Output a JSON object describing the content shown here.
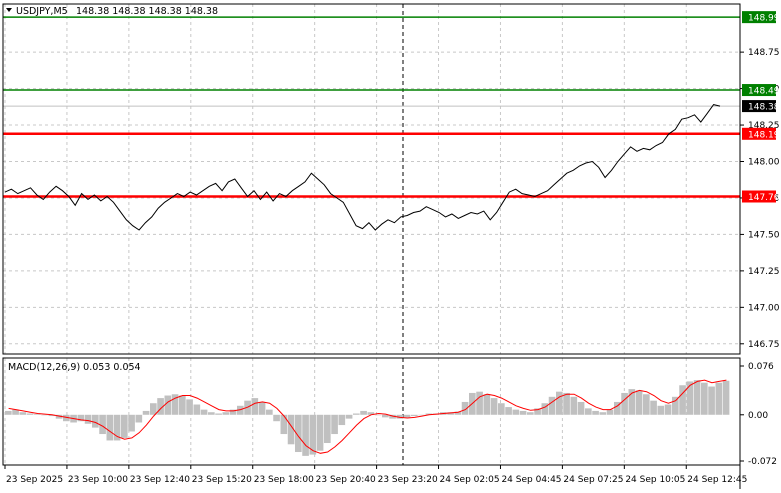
{
  "header": {
    "symbol": "USDJPY,M5",
    "ohlc": "148.38 148.38 148.38 148.38"
  },
  "macd_header": {
    "label": "MACD(12,26,9) 0.053 0.054"
  },
  "colors": {
    "background": "#ffffff",
    "grid": "#c8c8c8",
    "price_line": "#000000",
    "support_resistance": "#ff0000",
    "target": "#008000",
    "histogram": "#c0c0c0",
    "signal": "#ff0000"
  },
  "chart_data": [
    {
      "type": "line",
      "title": "USDJPY,M5",
      "ylim": [
        146.68,
        149.08
      ],
      "y_ticks": [
        "148.75",
        "148.50",
        "148.25",
        "148.00",
        "147.75",
        "147.50",
        "147.25",
        "147.00",
        "146.75"
      ],
      "grid": true,
      "x_labels": [
        "23 Sep 2025",
        "23 Sep 10:00",
        "23 Sep 12:40",
        "23 Sep 15:20",
        "23 Sep 18:00",
        "23 Sep 20:40",
        "23 Sep 23:20",
        "24 Sep 02:05",
        "24 Sep 04:45",
        "24 Sep 07:25",
        "24 Sep 10:05",
        "24 Sep 12:45"
      ],
      "current_price": "148.38",
      "levels": [
        {
          "value": 148.99,
          "label": "148.99",
          "kind": "target"
        },
        {
          "value": 148.49,
          "label": "148.49",
          "kind": "target"
        },
        {
          "value": 148.19,
          "label": "148.19",
          "kind": "level"
        },
        {
          "value": 147.76,
          "label": "147.76",
          "kind": "level"
        }
      ],
      "series": [
        {
          "values": [
            147.79,
            147.81,
            147.78,
            147.8,
            147.82,
            147.77,
            147.74,
            147.79,
            147.83,
            147.8,
            147.76,
            147.7,
            147.78,
            147.74,
            147.77,
            147.73,
            147.76,
            147.72,
            147.66,
            147.6,
            147.56,
            147.53,
            147.58,
            147.62,
            147.68,
            147.72,
            147.75,
            147.78,
            147.76,
            147.79,
            147.77,
            147.8,
            147.83,
            147.85,
            147.8,
            147.86,
            147.88,
            147.82,
            147.76,
            147.8,
            147.74,
            147.79,
            147.73,
            147.78,
            147.76,
            147.8,
            147.83,
            147.86,
            147.92,
            147.88,
            147.84,
            147.78,
            147.75,
            147.72,
            147.64,
            147.56,
            147.54,
            147.58,
            147.53,
            147.57,
            147.6,
            147.58,
            147.62,
            147.63,
            147.65,
            147.66,
            147.69,
            147.67,
            147.65,
            147.62,
            147.64,
            147.61,
            147.63,
            147.65,
            147.64,
            147.66,
            147.6,
            147.65,
            147.72,
            147.79,
            147.81,
            147.78,
            147.77,
            147.76,
            147.78,
            147.8,
            147.84,
            147.88,
            147.92,
            147.94,
            147.97,
            147.99,
            148.0,
            147.96,
            147.89,
            147.94,
            148.0,
            148.05,
            148.1,
            148.07,
            148.09,
            148.08,
            148.11,
            148.13,
            148.19,
            148.22,
            148.29,
            148.3,
            148.32,
            148.27,
            148.33,
            148.39,
            148.38
          ]
        }
      ]
    },
    {
      "type": "bar",
      "title": "MACD(12,26,9) 0.053 0.054",
      "ylim": [
        -0.072,
        0.076
      ],
      "y_ticks": [
        "0.076",
        "0.00",
        "-0.072"
      ],
      "series": [
        {
          "name": "MACD",
          "values": [
            0.006,
            0.008,
            0.004,
            0.002,
            0.001,
            0.0,
            -0.002,
            -0.006,
            -0.01,
            -0.012,
            -0.01,
            -0.014,
            -0.02,
            -0.03,
            -0.04,
            -0.04,
            -0.036,
            -0.026,
            -0.012,
            0.006,
            0.018,
            0.026,
            0.03,
            0.032,
            0.03,
            0.024,
            0.016,
            0.008,
            0.004,
            0.002,
            0.004,
            0.008,
            0.014,
            0.022,
            0.026,
            0.02,
            0.008,
            -0.01,
            -0.03,
            -0.046,
            -0.058,
            -0.064,
            -0.062,
            -0.056,
            -0.044,
            -0.03,
            -0.016,
            -0.006,
            0.002,
            0.006,
            0.004,
            0.0,
            -0.004,
            -0.006,
            -0.006,
            -0.004,
            -0.002,
            0.0,
            0.002,
            0.002,
            0.004,
            0.004,
            0.005,
            0.02,
            0.034,
            0.036,
            0.032,
            0.026,
            0.018,
            0.012,
            0.008,
            0.006,
            0.004,
            0.01,
            0.018,
            0.028,
            0.036,
            0.034,
            0.028,
            0.02,
            0.01,
            0.006,
            0.004,
            0.008,
            0.02,
            0.034,
            0.04,
            0.038,
            0.032,
            0.022,
            0.014,
            0.016,
            0.028,
            0.046,
            0.052,
            0.054,
            0.05,
            0.044,
            0.05,
            0.053
          ]
        },
        {
          "name": "Signal",
          "values": [
            0.01,
            0.008,
            0.006,
            0.004,
            0.002,
            0.001,
            0.0,
            -0.002,
            -0.004,
            -0.006,
            -0.008,
            -0.009,
            -0.012,
            -0.018,
            -0.026,
            -0.034,
            -0.038,
            -0.036,
            -0.028,
            -0.016,
            -0.002,
            0.01,
            0.02,
            0.026,
            0.03,
            0.03,
            0.026,
            0.02,
            0.014,
            0.008,
            0.006,
            0.006,
            0.008,
            0.012,
            0.018,
            0.02,
            0.018,
            0.01,
            -0.002,
            -0.018,
            -0.034,
            -0.048,
            -0.056,
            -0.06,
            -0.058,
            -0.05,
            -0.04,
            -0.028,
            -0.016,
            -0.006,
            0.0,
            0.002,
            0.001,
            -0.002,
            -0.004,
            -0.005,
            -0.004,
            -0.002,
            0.0,
            0.001,
            0.002,
            0.003,
            0.004,
            0.008,
            0.018,
            0.028,
            0.032,
            0.03,
            0.026,
            0.02,
            0.014,
            0.01,
            0.007,
            0.008,
            0.012,
            0.02,
            0.028,
            0.032,
            0.032,
            0.026,
            0.018,
            0.012,
            0.008,
            0.008,
            0.014,
            0.024,
            0.034,
            0.038,
            0.036,
            0.03,
            0.022,
            0.018,
            0.022,
            0.034,
            0.046,
            0.052,
            0.054,
            0.05,
            0.052,
            0.054
          ]
        }
      ]
    }
  ]
}
